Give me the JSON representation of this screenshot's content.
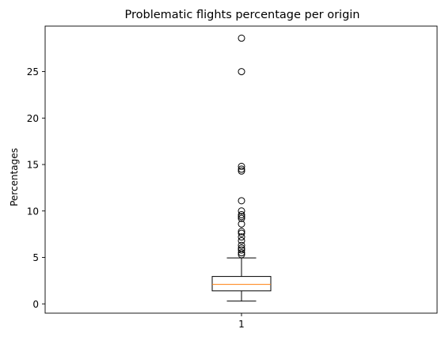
{
  "chart_data": {
    "type": "box",
    "title": "Problematic flights percentage per origin",
    "xlabel": "",
    "ylabel": "Percentages",
    "x_ticks": [
      "1"
    ],
    "y_ticks": [
      0,
      5,
      10,
      15,
      20,
      25
    ],
    "ylim": [
      -1.0,
      29.9
    ],
    "grid": false,
    "box": {
      "category": "1",
      "whisker_low": 0.3,
      "q1": 1.4,
      "median": 2.1,
      "q3": 2.95,
      "whisker_high": 4.95,
      "fliers": [
        5.3,
        5.5,
        5.8,
        6.0,
        6.3,
        6.8,
        7.2,
        7.6,
        7.8,
        8.6,
        9.2,
        9.4,
        9.6,
        10.0,
        11.1,
        14.3,
        14.5,
        14.8,
        25.0,
        28.6
      ]
    },
    "colors": {
      "box": "#000000",
      "median": "#ff7f0e",
      "flier": "#000000"
    }
  }
}
